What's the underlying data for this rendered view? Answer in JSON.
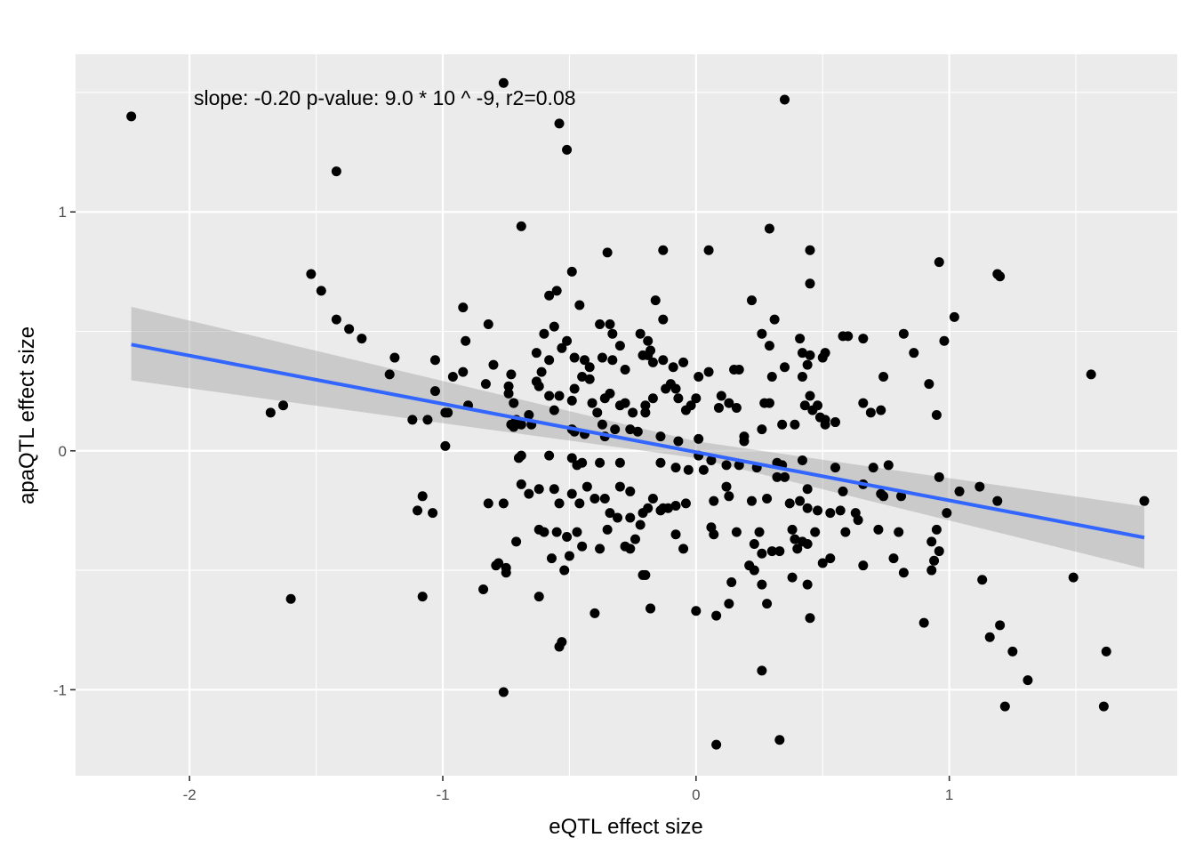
{
  "chart_data": {
    "type": "scatter",
    "title": "",
    "xlabel": "eQTL effect size",
    "ylabel": "apaQTL effect size",
    "xlim": [
      -2.45,
      1.9
    ],
    "ylim": [
      -1.36,
      1.66
    ],
    "x_ticks": [
      -2,
      -1,
      0,
      1
    ],
    "y_ticks": [
      -1,
      0,
      1
    ],
    "x_tick_labels": [
      "-2",
      "-1",
      "0",
      "1"
    ],
    "y_tick_labels": [
      "-1",
      "0",
      "1"
    ],
    "grid": true,
    "annotation": "slope: -0.20 p-value: 9.0 * 10 ^ -9, r2=0.08",
    "regression": {
      "slope": -0.2,
      "intercept": 0.0,
      "x_range": [
        -2.23,
        1.77
      ],
      "y_start": 0.445,
      "y_end": -0.363,
      "ci_start": [
        0.295,
        0.603
      ],
      "ci_end": [
        -0.493,
        -0.233
      ],
      "ci_mid": [
        -0.03,
        0.04
      ],
      "x_mid": 0.0,
      "line_color": "#3366ff",
      "band_color": "#999999"
    },
    "point_color": "#000000",
    "points": [
      [
        -2.23,
        1.4
      ],
      [
        -1.42,
        1.17
      ],
      [
        -0.76,
        1.54
      ],
      [
        0.35,
        1.47
      ],
      [
        -0.54,
        1.37
      ],
      [
        -0.51,
        1.26
      ],
      [
        -0.69,
        0.94
      ],
      [
        0.29,
        0.93
      ],
      [
        0.45,
        0.84
      ],
      [
        0.05,
        0.84
      ],
      [
        -0.13,
        0.84
      ],
      [
        -0.35,
        0.83
      ],
      [
        0.96,
        0.79
      ],
      [
        1.19,
        0.74
      ],
      [
        -1.52,
        0.74
      ],
      [
        -0.49,
        0.75
      ],
      [
        -1.48,
        0.67
      ],
      [
        0.45,
        0.7
      ],
      [
        -0.58,
        0.65
      ],
      [
        -0.55,
        0.67
      ],
      [
        -0.46,
        0.61
      ],
      [
        -0.92,
        0.6
      ],
      [
        0.22,
        0.63
      ],
      [
        -0.16,
        0.63
      ],
      [
        1.02,
        0.56
      ],
      [
        -1.42,
        0.55
      ],
      [
        -1.37,
        0.51
      ],
      [
        -1.32,
        0.47
      ],
      [
        -0.82,
        0.53
      ],
      [
        -0.91,
        0.46
      ],
      [
        -0.56,
        0.52
      ],
      [
        -0.6,
        0.49
      ],
      [
        -0.38,
        0.53
      ],
      [
        -0.34,
        0.53
      ],
      [
        -0.33,
        0.49
      ],
      [
        -0.51,
        0.46
      ],
      [
        -0.19,
        0.46
      ],
      [
        -0.22,
        0.49
      ],
      [
        -0.13,
        0.55
      ],
      [
        -0.3,
        0.44
      ],
      [
        0.31,
        0.55
      ],
      [
        0.26,
        0.49
      ],
      [
        0.58,
        0.48
      ],
      [
        0.6,
        0.48
      ],
      [
        0.66,
        0.47
      ],
      [
        0.82,
        0.49
      ],
      [
        0.98,
        0.46
      ],
      [
        0.41,
        0.47
      ],
      [
        0.29,
        0.44
      ],
      [
        -1.19,
        0.39
      ],
      [
        -1.21,
        0.32
      ],
      [
        -1.03,
        0.38
      ],
      [
        -0.92,
        0.33
      ],
      [
        -0.96,
        0.31
      ],
      [
        -0.8,
        0.36
      ],
      [
        -0.73,
        0.32
      ],
      [
        -0.63,
        0.41
      ],
      [
        -0.58,
        0.38
      ],
      [
        -0.61,
        0.33
      ],
      [
        -0.53,
        0.43
      ],
      [
        -0.48,
        0.39
      ],
      [
        -0.44,
        0.38
      ],
      [
        -0.42,
        0.35
      ],
      [
        -0.37,
        0.39
      ],
      [
        -0.33,
        0.38
      ],
      [
        -0.28,
        0.34
      ],
      [
        -0.21,
        0.4
      ],
      [
        -0.18,
        0.42
      ],
      [
        -0.17,
        0.37
      ],
      [
        -0.19,
        0.4
      ],
      [
        -0.13,
        0.38
      ],
      [
        -0.09,
        0.35
      ],
      [
        -0.05,
        0.37
      ],
      [
        0.05,
        0.33
      ],
      [
        0.15,
        0.34
      ],
      [
        0.17,
        0.34
      ],
      [
        0.3,
        0.31
      ],
      [
        0.35,
        0.35
      ],
      [
        0.42,
        0.41
      ],
      [
        0.45,
        0.4
      ],
      [
        0.5,
        0.39
      ],
      [
        0.51,
        0.41
      ],
      [
        0.42,
        0.31
      ],
      [
        0.44,
        0.36
      ],
      [
        0.86,
        0.41
      ],
      [
        0.74,
        0.31
      ],
      [
        0.92,
        0.28
      ],
      [
        1.56,
        0.32
      ],
      [
        -1.03,
        0.25
      ],
      [
        -1.06,
        0.13
      ],
      [
        -0.99,
        0.16
      ],
      [
        -0.98,
        0.16
      ],
      [
        -0.9,
        0.19
      ],
      [
        -0.74,
        0.27
      ],
      [
        -0.74,
        0.24
      ],
      [
        -0.72,
        0.2
      ],
      [
        -0.71,
        0.13
      ],
      [
        -0.66,
        0.15
      ],
      [
        -0.63,
        0.29
      ],
      [
        -0.62,
        0.27
      ],
      [
        -0.58,
        0.23
      ],
      [
        -0.54,
        0.23
      ],
      [
        -0.56,
        0.17
      ],
      [
        -0.49,
        0.21
      ],
      [
        -0.48,
        0.26
      ],
      [
        -0.45,
        0.31
      ],
      [
        -0.42,
        0.3
      ],
      [
        -0.41,
        0.2
      ],
      [
        -0.39,
        0.16
      ],
      [
        -0.36,
        0.22
      ],
      [
        -0.34,
        0.24
      ],
      [
        -0.3,
        0.19
      ],
      [
        -0.28,
        0.2
      ],
      [
        -0.25,
        0.16
      ],
      [
        -0.2,
        0.19
      ],
      [
        -0.2,
        0.16
      ],
      [
        -0.17,
        0.22
      ],
      [
        -0.12,
        0.26
      ],
      [
        -0.1,
        0.28
      ],
      [
        -0.08,
        0.26
      ],
      [
        -0.07,
        0.22
      ],
      [
        -0.04,
        0.17
      ],
      [
        -0.02,
        0.19
      ],
      [
        0.0,
        0.22
      ],
      [
        0.01,
        0.31
      ],
      [
        0.1,
        0.23
      ],
      [
        0.09,
        0.18
      ],
      [
        0.13,
        0.2
      ],
      [
        0.16,
        0.18
      ],
      [
        0.27,
        0.2
      ],
      [
        0.29,
        0.2
      ],
      [
        0.34,
        0.11
      ],
      [
        0.43,
        0.19
      ],
      [
        0.46,
        0.17
      ],
      [
        0.48,
        0.19
      ],
      [
        0.51,
        0.13
      ],
      [
        0.55,
        0.12
      ],
      [
        0.66,
        0.2
      ],
      [
        0.69,
        0.16
      ],
      [
        0.73,
        0.17
      ],
      [
        0.95,
        0.15
      ],
      [
        1.2,
        0.73
      ],
      [
        -1.68,
        0.16
      ],
      [
        -1.63,
        0.19
      ],
      [
        -1.12,
        0.13
      ],
      [
        -0.99,
        0.02
      ],
      [
        -0.83,
        0.28
      ],
      [
        -0.72,
        0.1
      ],
      [
        -0.73,
        0.11
      ],
      [
        -0.69,
        0.11
      ],
      [
        -0.65,
        0.11
      ],
      [
        -0.49,
        0.09
      ],
      [
        -0.48,
        0.08
      ],
      [
        -0.44,
        0.07
      ],
      [
        -0.36,
        0.06
      ],
      [
        -0.37,
        0.11
      ],
      [
        -0.32,
        0.09
      ],
      [
        -0.26,
        0.09
      ],
      [
        -0.23,
        0.08
      ],
      [
        -0.14,
        0.06
      ],
      [
        -0.07,
        0.04
      ],
      [
        0.01,
        0.05
      ],
      [
        0.19,
        0.04
      ],
      [
        0.19,
        0.06
      ],
      [
        0.26,
        0.09
      ],
      [
        0.39,
        0.11
      ],
      [
        0.49,
        0.14
      ],
      [
        0.45,
        0.23
      ],
      [
        0.51,
        0.11
      ],
      [
        -0.69,
        -0.02
      ],
      [
        -0.7,
        -0.03
      ],
      [
        -0.58,
        -0.02
      ],
      [
        -0.49,
        -0.03
      ],
      [
        -0.47,
        -0.06
      ],
      [
        -0.45,
        -0.05
      ],
      [
        -0.38,
        -0.05
      ],
      [
        -0.3,
        -0.05
      ],
      [
        -0.14,
        -0.05
      ],
      [
        -0.08,
        -0.07
      ],
      [
        -0.03,
        -0.08
      ],
      [
        0.01,
        -0.02
      ],
      [
        0.06,
        -0.04
      ],
      [
        0.03,
        -0.08
      ],
      [
        0.12,
        -0.06
      ],
      [
        0.17,
        -0.06
      ],
      [
        0.24,
        -0.07
      ],
      [
        0.34,
        -0.06
      ],
      [
        0.32,
        -0.05
      ],
      [
        0.42,
        -0.04
      ],
      [
        0.55,
        -0.07
      ],
      [
        0.7,
        -0.07
      ],
      [
        0.76,
        -0.06
      ],
      [
        0.32,
        -0.11
      ],
      [
        0.35,
        -0.11
      ],
      [
        0.12,
        -0.15
      ],
      [
        0.44,
        -0.16
      ],
      [
        0.58,
        -0.17
      ],
      [
        0.66,
        -0.14
      ],
      [
        0.73,
        -0.18
      ],
      [
        0.74,
        -0.19
      ],
      [
        0.81,
        -0.19
      ],
      [
        0.96,
        -0.11
      ],
      [
        1.04,
        -0.17
      ],
      [
        1.12,
        -0.15
      ],
      [
        1.19,
        -0.21
      ],
      [
        1.77,
        -0.21
      ],
      [
        0.99,
        -0.26
      ],
      [
        -1.08,
        -0.19
      ],
      [
        -1.1,
        -0.25
      ],
      [
        -1.04,
        -0.26
      ],
      [
        -0.82,
        -0.22
      ],
      [
        -0.76,
        -0.22
      ],
      [
        -0.66,
        -0.18
      ],
      [
        -0.69,
        -0.14
      ],
      [
        -0.62,
        -0.16
      ],
      [
        -0.56,
        -0.16
      ],
      [
        -0.54,
        -0.22
      ],
      [
        -0.49,
        -0.18
      ],
      [
        -0.46,
        -0.22
      ],
      [
        -0.43,
        -0.15
      ],
      [
        -0.4,
        -0.2
      ],
      [
        -0.36,
        -0.2
      ],
      [
        -0.3,
        -0.15
      ],
      [
        -0.26,
        -0.17
      ],
      [
        -0.19,
        -0.24
      ],
      [
        -0.17,
        -0.2
      ],
      [
        -0.11,
        -0.24
      ],
      [
        -0.08,
        -0.23
      ],
      [
        -0.04,
        -0.22
      ],
      [
        0.07,
        -0.21
      ],
      [
        0.13,
        -0.19
      ],
      [
        0.22,
        -0.21
      ],
      [
        0.28,
        -0.2
      ],
      [
        0.37,
        -0.22
      ],
      [
        0.41,
        -0.21
      ],
      [
        0.44,
        -0.24
      ],
      [
        0.48,
        -0.25
      ],
      [
        0.53,
        -0.26
      ],
      [
        0.57,
        -0.25
      ],
      [
        0.63,
        -0.26
      ],
      [
        0.64,
        -0.29
      ],
      [
        0.72,
        -0.33
      ],
      [
        0.8,
        -0.34
      ],
      [
        0.95,
        -0.33
      ],
      [
        0.93,
        -0.38
      ],
      [
        -0.34,
        -0.26
      ],
      [
        -0.31,
        -0.28
      ],
      [
        -0.26,
        -0.28
      ],
      [
        -0.21,
        -0.26
      ],
      [
        -0.22,
        -0.31
      ],
      [
        -0.14,
        -0.25
      ],
      [
        -0.13,
        -0.24
      ],
      [
        -0.24,
        -0.37
      ],
      [
        -0.35,
        -0.33
      ],
      [
        -0.47,
        -0.34
      ],
      [
        -0.55,
        -0.34
      ],
      [
        -0.51,
        -0.36
      ],
      [
        -0.57,
        -0.45
      ],
      [
        -0.5,
        -0.44
      ],
      [
        -0.6,
        -0.34
      ],
      [
        -0.62,
        -0.33
      ],
      [
        -0.71,
        -0.38
      ],
      [
        -0.52,
        -0.5
      ],
      [
        -0.45,
        -0.4
      ],
      [
        -0.38,
        -0.41
      ],
      [
        -0.28,
        -0.4
      ],
      [
        -0.26,
        -0.41
      ],
      [
        -0.2,
        -0.52
      ],
      [
        -0.18,
        -0.66
      ],
      [
        -0.08,
        -0.35
      ],
      [
        -0.05,
        -0.41
      ],
      [
        0.06,
        -0.32
      ],
      [
        0.07,
        -0.35
      ],
      [
        0.16,
        -0.34
      ],
      [
        0.23,
        -0.39
      ],
      [
        0.25,
        -0.34
      ],
      [
        0.26,
        -0.43
      ],
      [
        0.3,
        -0.42
      ],
      [
        0.33,
        -0.42
      ],
      [
        0.38,
        -0.33
      ],
      [
        0.39,
        -0.37
      ],
      [
        0.4,
        -0.41
      ],
      [
        0.42,
        -0.38
      ],
      [
        0.44,
        -0.39
      ],
      [
        0.47,
        -0.34
      ],
      [
        0.5,
        -0.47
      ],
      [
        0.53,
        -0.45
      ],
      [
        0.59,
        -0.34
      ],
      [
        0.66,
        -0.48
      ],
      [
        0.78,
        -0.45
      ],
      [
        0.82,
        -0.51
      ],
      [
        0.93,
        -0.5
      ],
      [
        0.94,
        -0.46
      ],
      [
        0.96,
        -0.42
      ],
      [
        1.2,
        -0.73
      ],
      [
        -0.78,
        -0.47
      ],
      [
        -0.79,
        -0.48
      ],
      [
        -0.84,
        -0.58
      ],
      [
        -0.75,
        -0.51
      ],
      [
        -0.75,
        -0.49
      ],
      [
        -0.62,
        -0.61
      ],
      [
        -0.54,
        -0.82
      ],
      [
        -0.53,
        -0.8
      ],
      [
        -0.4,
        -0.68
      ],
      [
        -0.18,
        -0.66
      ],
      [
        -0.21,
        -0.52
      ],
      [
        0.0,
        -0.67
      ],
      [
        0.08,
        -0.69
      ],
      [
        0.13,
        -0.64
      ],
      [
        0.14,
        -0.55
      ],
      [
        0.21,
        -0.48
      ],
      [
        0.23,
        -0.5
      ],
      [
        0.26,
        -0.56
      ],
      [
        0.28,
        -0.64
      ],
      [
        0.38,
        -0.53
      ],
      [
        0.44,
        -0.56
      ],
      [
        0.45,
        -0.7
      ],
      [
        0.33,
        -1.21
      ],
      [
        0.26,
        -0.92
      ],
      [
        0.08,
        -1.23
      ],
      [
        -0.76,
        -1.01
      ],
      [
        -1.6,
        -0.62
      ],
      [
        -1.08,
        -0.61
      ],
      [
        1.16,
        -0.78
      ],
      [
        1.13,
        -0.54
      ],
      [
        1.25,
        -0.84
      ],
      [
        1.31,
        -0.96
      ],
      [
        1.22,
        -1.07
      ],
      [
        1.49,
        -0.53
      ],
      [
        1.61,
        -1.07
      ],
      [
        1.62,
        -0.84
      ],
      [
        0.9,
        -0.72
      ]
    ]
  }
}
